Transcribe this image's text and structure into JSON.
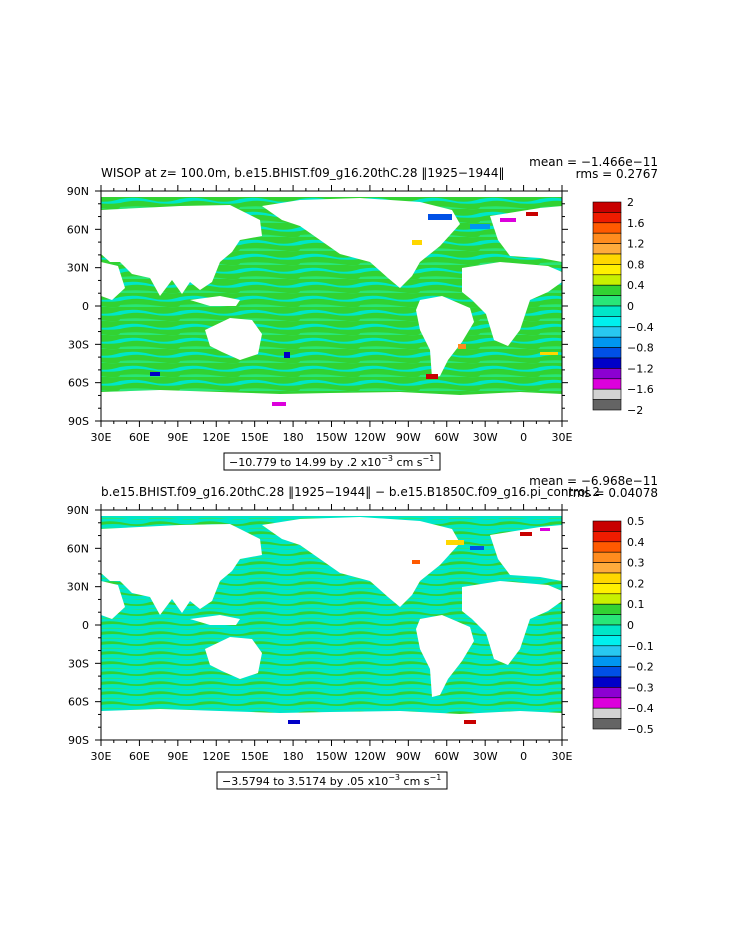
{
  "panels": [
    {
      "title": "WISOP at z= 100.0m, b.e15.BHIST.f09_g16.20thC.28 ‖1925−1944‖",
      "mean_label": "mean = −1.466e−11",
      "rms_label": "rms = 0.2767",
      "range_text": "−10.779 to 14.99 by .2 x10",
      "range_units": "cm s",
      "lat_ticks": [
        "90N",
        "60N",
        "30N",
        "0",
        "30S",
        "60S",
        "90S"
      ],
      "lon_ticks": [
        "30E",
        "60E",
        "90E",
        "120E",
        "150E",
        "180",
        "150W",
        "120W",
        "90W",
        "60W",
        "30W",
        "0",
        "30E"
      ],
      "colorbar_labels": [
        "2",
        "1.6",
        "1.2",
        "0.8",
        "0.4",
        "0",
        "−0.4",
        "−0.8",
        "−1.2",
        "−1.6",
        "−2"
      ]
    },
    {
      "title": "b.e15.BHIST.f09_g16.20thC.28 ‖1925−1944‖ − b.e15.B1850C.f09_g16.pi_control.2",
      "mean_label": "mean = −6.968e−11",
      "rms_label": "rms = 0.04078",
      "range_text": "−3.5794 to 3.5174 by .05 x10",
      "range_units": "cm s",
      "lat_ticks": [
        "90N",
        "60N",
        "30N",
        "0",
        "30S",
        "60S",
        "90S"
      ],
      "lon_ticks": [
        "30E",
        "60E",
        "90E",
        "120E",
        "150E",
        "180",
        "150W",
        "120W",
        "90W",
        "60W",
        "30W",
        "0",
        "30E"
      ],
      "colorbar_labels": [
        "0.5",
        "0.4",
        "0.3",
        "0.2",
        "0.1",
        "0",
        "−0.1",
        "−0.2",
        "−0.3",
        "−0.4",
        "−0.5"
      ]
    }
  ],
  "range_exponent": "−3",
  "units_exponent": "−1",
  "colorbar_colors": [
    "#c80000",
    "#ee1c00",
    "#ff5a00",
    "#ff8c1e",
    "#ffab3c",
    "#ffd700",
    "#fff000",
    "#c8f000",
    "#32d232",
    "#28e678",
    "#00e6c8",
    "#00f0ee",
    "#28c8f0",
    "#0096f0",
    "#0050e6",
    "#0000c8",
    "#8c00d2",
    "#dc00dc",
    "#d2d2d2",
    "#646464"
  ],
  "chart_data": [
    {
      "type": "heatmap",
      "title": "WISOP at z= 100.0m, b.e15.BHIST.f09_g16.20thC.28 ‖1925−1944‖",
      "xlabel": "",
      "ylabel": "",
      "xlim": [
        30,
        390
      ],
      "ylim": [
        -90,
        90
      ],
      "color_levels": [
        -2,
        -1.8,
        -1.6,
        -1.4,
        -1.2,
        -1,
        -0.8,
        -0.6,
        -0.4,
        -0.2,
        0,
        0.2,
        0.4,
        0.6,
        0.8,
        1,
        1.2,
        1.4,
        1.6,
        1.8,
        2
      ],
      "mean": -1.466e-11,
      "rms": 0.2767,
      "data_min": -10.779,
      "data_max": 14.99,
      "contour_interval": 0.2,
      "scale": "x10^-3 cm s^-1"
    },
    {
      "type": "heatmap",
      "title": "b.e15.BHIST.f09_g16.20thC.28 ‖1925−1944‖ − b.e15.B1850C.f09_g16.pi_control.2",
      "xlabel": "",
      "ylabel": "",
      "xlim": [
        30,
        390
      ],
      "ylim": [
        -90,
        90
      ],
      "color_levels": [
        -0.5,
        -0.45,
        -0.4,
        -0.35,
        -0.3,
        -0.25,
        -0.2,
        -0.15,
        -0.1,
        -0.05,
        0,
        0.05,
        0.1,
        0.15,
        0.2,
        0.25,
        0.3,
        0.35,
        0.4,
        0.45,
        0.5
      ],
      "mean": -6.968e-11,
      "rms": 0.04078,
      "data_min": -3.5794,
      "data_max": 3.5174,
      "contour_interval": 0.05,
      "scale": "x10^-3 cm s^-1"
    }
  ]
}
